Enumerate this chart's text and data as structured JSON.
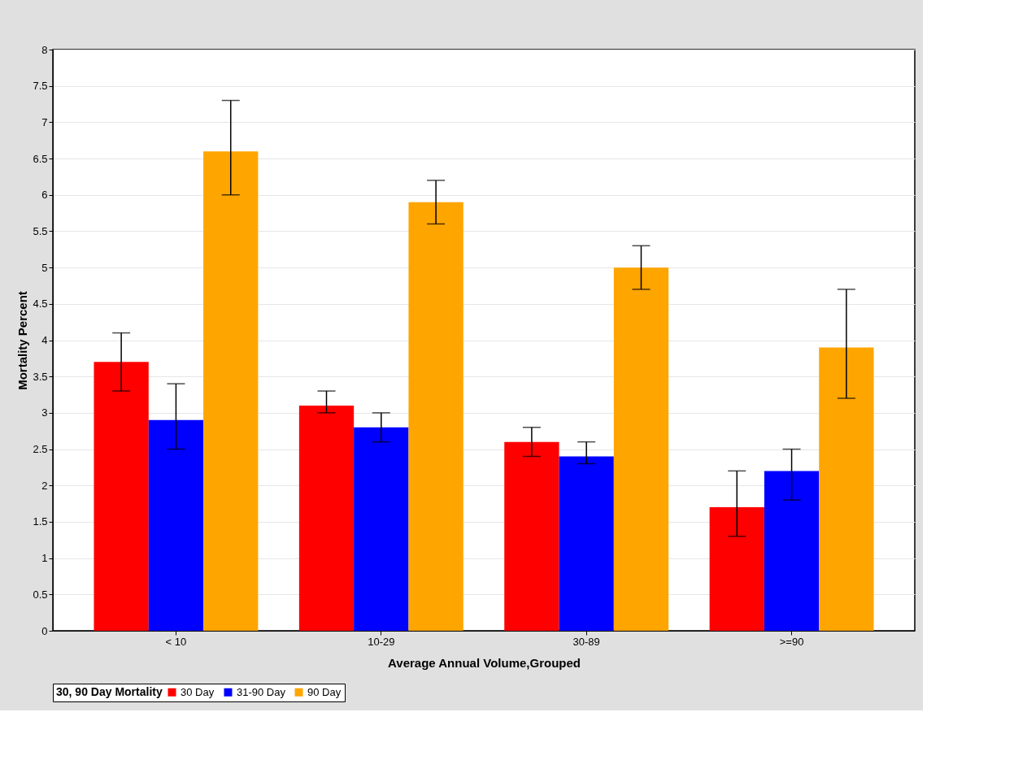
{
  "chart_data": {
    "type": "bar",
    "xlabel": "Average Annual Volume,Grouped",
    "ylabel": "Mortality Percent",
    "legend_title": "30, 90 Day Mortality",
    "legend": "bottom",
    "grid": "y",
    "categories": [
      "< 10",
      "10-29",
      "30-89",
      ">=90"
    ],
    "ylim": [
      0,
      8
    ],
    "yticks": [
      0,
      0.5,
      1,
      1.5,
      2,
      2.5,
      3,
      3.5,
      4,
      4.5,
      5,
      5.5,
      6,
      6.5,
      7,
      7.5,
      8
    ],
    "series": [
      {
        "name": "30 Day",
        "color": "#ff0000",
        "values": [
          3.7,
          3.1,
          2.6,
          1.7
        ],
        "errors": [
          [
            3.3,
            4.1
          ],
          [
            3.0,
            3.3
          ],
          [
            2.4,
            2.8
          ],
          [
            1.3,
            2.2
          ]
        ]
      },
      {
        "name": "31-90 Day",
        "color": "#0000ff",
        "values": [
          2.9,
          2.8,
          2.4,
          2.2
        ],
        "errors": [
          [
            2.5,
            3.4
          ],
          [
            2.6,
            3.0
          ],
          [
            2.3,
            2.6
          ],
          [
            1.8,
            2.5
          ]
        ]
      },
      {
        "name": "90 Day",
        "color": "#ffa500",
        "values": [
          6.6,
          5.9,
          5.0,
          3.9
        ],
        "errors": [
          [
            6.0,
            7.3
          ],
          [
            5.6,
            6.2
          ],
          [
            4.7,
            5.3
          ],
          [
            3.2,
            4.7
          ]
        ]
      }
    ]
  }
}
